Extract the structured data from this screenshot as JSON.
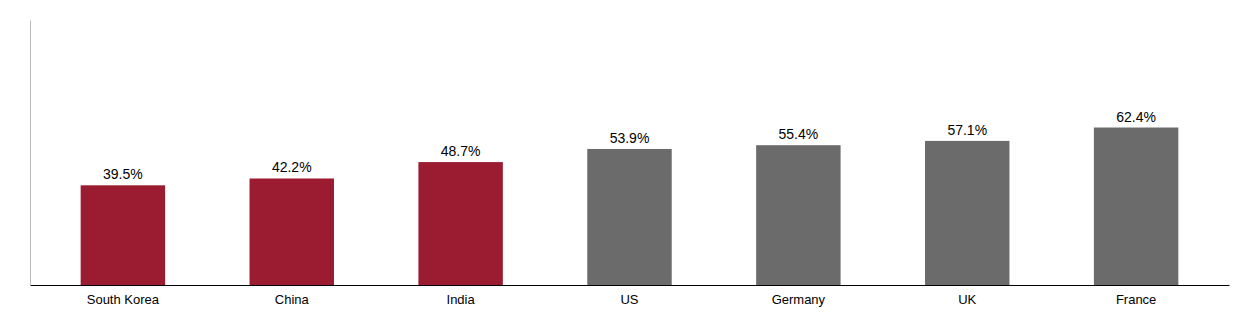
{
  "chart_data": {
    "type": "bar",
    "categories": [
      "South Korea",
      "China",
      "India",
      "US",
      "Germany",
      "UK",
      "France"
    ],
    "values": [
      39.5,
      42.2,
      48.7,
      53.9,
      55.4,
      57.1,
      62.4
    ],
    "value_labels": [
      "39.5%",
      "42.2%",
      "48.7%",
      "53.9%",
      "55.4%",
      "57.1%",
      "62.4%"
    ],
    "colors": [
      "#9B1B30",
      "#9B1B30",
      "#9B1B30",
      "#6B6B6B",
      "#6B6B6B",
      "#6B6B6B",
      "#6B6B6B"
    ],
    "ylim": [
      0,
      105
    ],
    "data_labels": true,
    "tick_labels": "x"
  }
}
